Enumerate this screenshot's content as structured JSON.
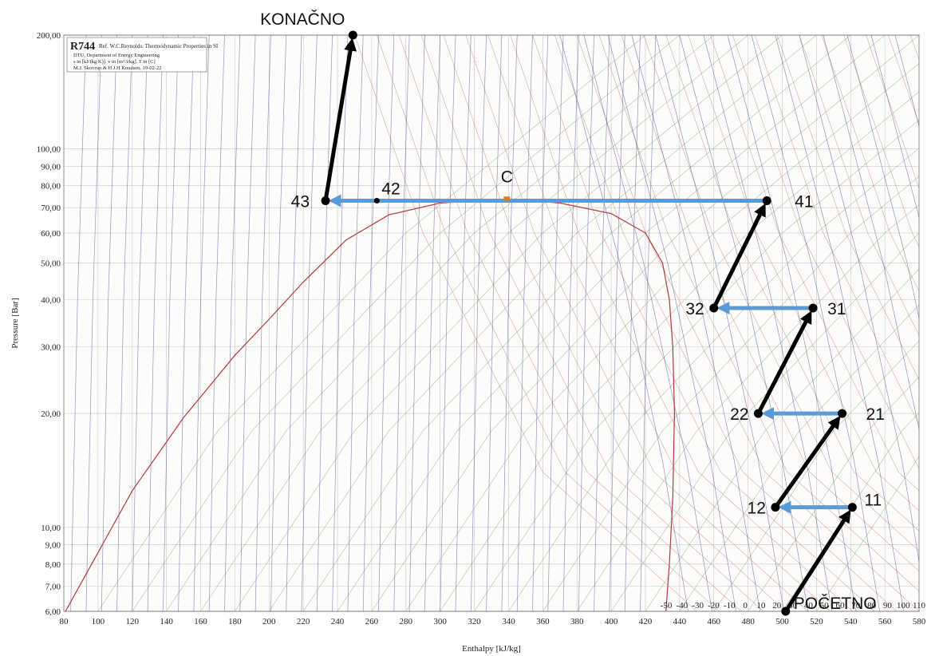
{
  "chart_data": {
    "type": "line",
    "title": "R744",
    "subtitle": "Ref. W.C.Reynolds: Thermodynamic Properties in SI",
    "info_lines": [
      "DTU, Department of Energy Engineering",
      "s in [kJ/(kg K)]. v in [m^3/kg]. T in [C]",
      "M.J. Skovrup & H.J.H Knudsen. 19-02-22"
    ],
    "xlabel": "Enthalpy [kJ/kg]",
    "ylabel": "Pressure [Bar]",
    "xlim": [
      80,
      580
    ],
    "ylim": [
      6,
      200
    ],
    "y_scale": "log",
    "grid": true,
    "x_ticks": [
      "80",
      "100",
      "120",
      "140",
      "160",
      "180",
      "200",
      "220",
      "240",
      "260",
      "280",
      "300",
      "320",
      "340",
      "360",
      "380",
      "400",
      "420",
      "440",
      "460",
      "480",
      "500",
      "520",
      "540",
      "560",
      "580"
    ],
    "y_ticks": [
      {
        "value": 6,
        "label": "6,00"
      },
      {
        "value": 7,
        "label": "7,00"
      },
      {
        "value": 8,
        "label": "8,00"
      },
      {
        "value": 9,
        "label": "9,00"
      },
      {
        "value": 10,
        "label": "10,00"
      },
      {
        "value": 20,
        "label": "20,00"
      },
      {
        "value": 30,
        "label": "30,00"
      },
      {
        "value": 40,
        "label": "40,00"
      },
      {
        "value": 50,
        "label": "50,00"
      },
      {
        "value": 60,
        "label": "60,00"
      },
      {
        "value": 70,
        "label": "70,00"
      },
      {
        "value": 80,
        "label": "80,00"
      },
      {
        "value": 90,
        "label": "90,00"
      },
      {
        "value": 100,
        "label": "100,00"
      },
      {
        "value": 200,
        "label": "200,00"
      }
    ],
    "secondary_x_ticks": [
      "-50",
      "-40",
      "-30",
      "-20",
      "-10",
      "0",
      "10",
      "20",
      "30",
      "40",
      "50",
      "60",
      "70",
      "80",
      "90",
      "100",
      "110"
    ],
    "critical_point": {
      "label": "C",
      "h": 339,
      "p": 73.8
    },
    "saturation_dome": [
      [
        81,
        6.0
      ],
      [
        120,
        12.5
      ],
      [
        150,
        19.5
      ],
      [
        180,
        28.5
      ],
      [
        200,
        35.5
      ],
      [
        220,
        44.5
      ],
      [
        245,
        57.5
      ],
      [
        270,
        67.0
      ],
      [
        300,
        72.0
      ],
      [
        339,
        73.8
      ],
      [
        370,
        72.0
      ],
      [
        400,
        67.5
      ],
      [
        420,
        60.0
      ],
      [
        430,
        50.0
      ],
      [
        434,
        40.0
      ],
      [
        436,
        30.0
      ],
      [
        437,
        20.0
      ],
      [
        436,
        12.0
      ],
      [
        434,
        8.0
      ],
      [
        432,
        6.0
      ]
    ],
    "points": [
      {
        "label": "POČETNO",
        "h": 502,
        "p": 6.0
      },
      {
        "label": "11",
        "h": 541,
        "p": 11.3
      },
      {
        "label": "12",
        "h": 496,
        "p": 11.3
      },
      {
        "label": "21",
        "h": 535,
        "p": 20.0
      },
      {
        "label": "22",
        "h": 486,
        "p": 20.0
      },
      {
        "label": "31",
        "h": 518,
        "p": 38.0
      },
      {
        "label": "32",
        "h": 460,
        "p": 38.0
      },
      {
        "label": "41",
        "h": 491,
        "p": 73.0
      },
      {
        "label": "42",
        "h": 263,
        "p": 73.0
      },
      {
        "label": "43",
        "h": 233,
        "p": 73.0
      },
      {
        "label": "KONAČNO",
        "h": 249,
        "p": 200.0
      }
    ],
    "compression_steps": [
      [
        "POČETNO",
        "11"
      ],
      [
        "12",
        "21"
      ],
      [
        "22",
        "31"
      ],
      [
        "32",
        "41"
      ],
      [
        "43",
        "KONAČNO"
      ]
    ],
    "cooling_steps": [
      [
        "11",
        "12"
      ],
      [
        "21",
        "22"
      ],
      [
        "31",
        "32"
      ],
      [
        "41",
        "43"
      ]
    ],
    "colors": {
      "compression": "#000000",
      "cooling": "#5b9bd5",
      "isotherm": "#b23a3a",
      "isentrope": "#3a3a9a",
      "isochore": "#3a8a3a",
      "grid": "#c8c8c8",
      "critical": "#d08030"
    }
  }
}
